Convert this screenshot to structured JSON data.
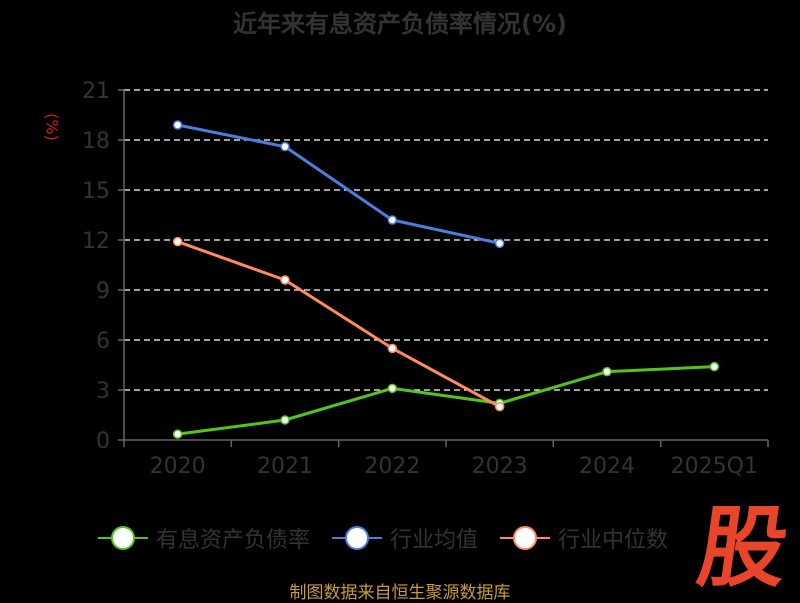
{
  "title": "近年来有息资产负债率情况(%)",
  "source": "制图数据来自恒生聚源数据库",
  "logo_text": "股",
  "colors": {
    "background": "#000000",
    "title": "#333333",
    "ylabel": "#d01f1f",
    "axis": "#666666",
    "tick_text": "#333333",
    "grid": "#ffffff",
    "source": "#c89b3c",
    "logo": "#e8452a"
  },
  "chart_data": {
    "type": "line",
    "title": "近年来有息资产负债率情况(%)",
    "xlabel": "",
    "ylabel": "(%)",
    "categories": [
      "2020",
      "2021",
      "2022",
      "2023",
      "2024",
      "2025Q1"
    ],
    "ylim": [
      0,
      21
    ],
    "yticks": [
      0,
      3,
      6,
      9,
      12,
      15,
      18,
      21
    ],
    "grid": true,
    "grid_style": "dashed",
    "legend_position": "bottom",
    "series": [
      {
        "name": "有息资产负债率",
        "color": "#52c41a",
        "values": [
          0.35,
          1.2,
          3.1,
          2.2,
          4.1,
          4.4
        ]
      },
      {
        "name": "行业均值",
        "color": "#4a7fde",
        "values": [
          18.9,
          17.6,
          13.2,
          11.8,
          null,
          null
        ]
      },
      {
        "name": "行业中位数",
        "color": "#ff8c5a",
        "values": [
          11.9,
          9.6,
          5.5,
          2.0,
          null,
          null
        ]
      }
    ]
  }
}
